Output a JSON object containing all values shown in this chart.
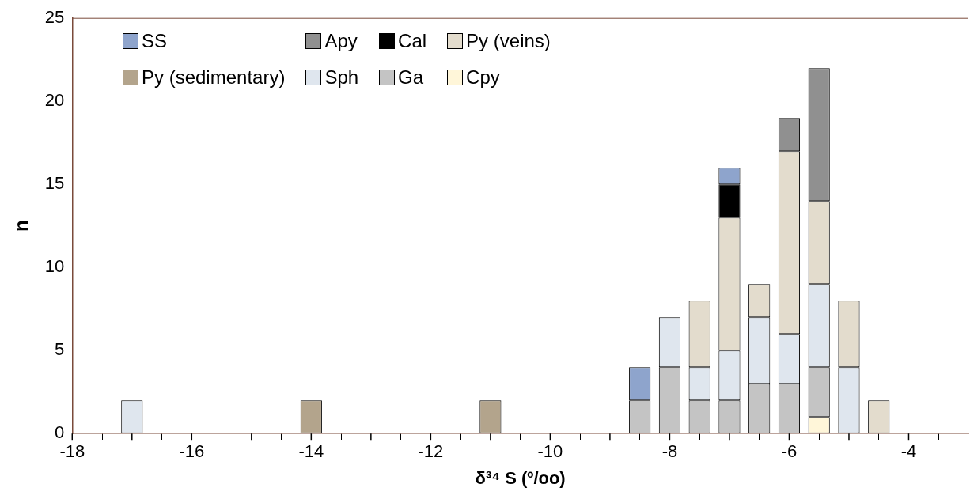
{
  "chart_data": {
    "type": "bar",
    "stacked": true,
    "xlabel": "δ³⁴ S (º/oo)",
    "ylabel": "n",
    "x": [
      -17,
      -14,
      -11,
      -8.5,
      -8,
      -7.5,
      -7,
      -6.5,
      -6,
      -5.5,
      -5,
      -4.5
    ],
    "series": [
      {
        "name": "Cpy",
        "color": "#fff6d9",
        "values": [
          null,
          null,
          null,
          null,
          null,
          null,
          null,
          null,
          null,
          1,
          null,
          null
        ]
      },
      {
        "name": "Ga",
        "color": "#c4c4c4",
        "values": [
          null,
          null,
          null,
          2,
          4,
          2,
          2,
          3,
          3,
          3,
          null,
          null
        ]
      },
      {
        "name": "Sph",
        "color": "#dfe6ee",
        "values": [
          2,
          null,
          null,
          null,
          3,
          2,
          3,
          4,
          3,
          5,
          4,
          null
        ]
      },
      {
        "name": "Py (sedimentary)",
        "color": "#b3a48c",
        "values": [
          null,
          2,
          2,
          null,
          null,
          null,
          null,
          null,
          null,
          null,
          null,
          null
        ]
      },
      {
        "name": "Py (veins)",
        "color": "#e3dccd",
        "values": [
          null,
          null,
          null,
          null,
          null,
          4,
          8,
          2,
          11,
          5,
          4,
          2
        ]
      },
      {
        "name": "Cal",
        "color": "#000000",
        "values": [
          null,
          null,
          null,
          null,
          null,
          null,
          2,
          null,
          null,
          null,
          null,
          null
        ]
      },
      {
        "name": "Apy",
        "color": "#909090",
        "values": [
          null,
          null,
          null,
          null,
          null,
          null,
          null,
          null,
          2,
          8,
          null,
          null
        ]
      },
      {
        "name": "SS",
        "color": "#8ea4cc",
        "values": [
          null,
          null,
          null,
          2,
          null,
          null,
          1,
          null,
          null,
          null,
          null,
          null
        ]
      }
    ],
    "xlim": [
      -18,
      -3
    ],
    "xticks": [
      -18,
      {
        "value": -17,
        "label": null
      },
      -16,
      {
        "value": -15,
        "label": null
      },
      -14,
      {
        "value": -13,
        "label": null
      },
      -12,
      {
        "value": -11,
        "label": null
      },
      -10,
      {
        "value": -9,
        "label": null
      },
      -8,
      {
        "value": -7,
        "label": null
      },
      -6,
      {
        "value": -5,
        "label": null
      },
      -4
    ],
    "ylim": [
      0,
      25
    ],
    "yticks": [
      0,
      5,
      10,
      15,
      20,
      25
    ],
    "grid": false,
    "legend": "top left"
  }
}
